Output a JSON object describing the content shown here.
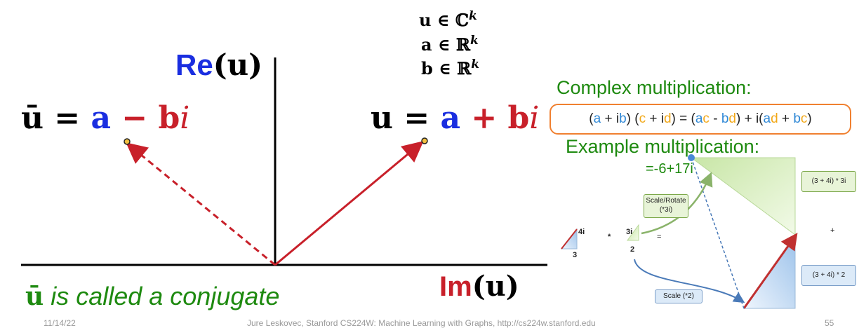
{
  "sets": {
    "u_set": "u ∈ ℂ",
    "u_sup": "k",
    "a_set": "a ∈ ℝ",
    "a_sup": "k",
    "b_set": "b ∈ ℝ",
    "b_sup": "k"
  },
  "axes": {
    "re_prefix": "Re",
    "re_arg": "(u)",
    "im_prefix": "Im",
    "im_arg": "(u)"
  },
  "conjugate_label": {
    "lhs": "ū = ",
    "a": "a",
    "op": " − ",
    "b": "b",
    "i": "i"
  },
  "vector_label": {
    "lhs": "u = ",
    "a": "a",
    "op": " + ",
    "b": "b",
    "i": "i"
  },
  "caption": {
    "symbol": "ū",
    "text": " is called a conjugate"
  },
  "complex_mult": {
    "heading": "Complex multiplication:",
    "formula_parts": [
      "(",
      "a",
      " + i",
      "b",
      ") (",
      "c",
      " + i",
      "d",
      ") = (",
      "a",
      "c",
      " - ",
      "b",
      "d",
      ") + i(",
      "a",
      "d",
      " + ",
      "b",
      "c",
      ")"
    ]
  },
  "example": {
    "heading": "Example multiplication:",
    "result": "=-6+17i",
    "tri1_side": "4i",
    "tri1_base": "3",
    "times": "*",
    "tri2_side": "3i",
    "tri2_base": "2",
    "equals": "=",
    "scale_rotate": "Scale/Rotate\n(*3i)",
    "scale": "Scale (*2)",
    "part1": "(3 + 4i) * 3i",
    "plus": "+",
    "part2": "(3 + 4i) * 2"
  },
  "footer": {
    "date": "11/14/22",
    "credit": "Jure Leskovec, Stanford CS224W: Machine Learning with Graphs, http://cs224w.stanford.edu",
    "page": "55"
  },
  "colors": {
    "blue": "#1a2ee0",
    "red": "#c8202a",
    "green": "#1e8a10",
    "orange": "#f08030"
  }
}
